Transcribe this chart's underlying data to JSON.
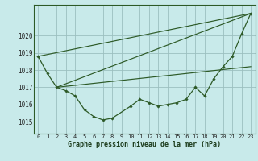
{
  "background_color": "#c8eaea",
  "plot_bg_color": "#c8eaea",
  "grid_color": "#9bbfbf",
  "line_color": "#2d5a27",
  "marker_color": "#2d5a27",
  "xlabel": "Graphe pression niveau de la mer (hPa)",
  "xlim": [
    -0.5,
    23.5
  ],
  "ylim": [
    1014.3,
    1021.8
  ],
  "yticks": [
    1015,
    1016,
    1017,
    1018,
    1019,
    1020
  ],
  "xticks": [
    0,
    1,
    2,
    3,
    4,
    5,
    6,
    7,
    8,
    9,
    10,
    11,
    12,
    13,
    14,
    15,
    16,
    17,
    18,
    19,
    20,
    21,
    22,
    23
  ],
  "series1": [
    1018.8,
    1017.8,
    1017.0,
    1016.8,
    1016.5,
    1015.7,
    1015.3,
    1015.1,
    1015.2,
    null,
    1015.9,
    1016.3,
    1016.1,
    1015.9,
    1016.0,
    1016.1,
    1016.3,
    1017.0,
    1016.5,
    1017.5,
    1018.2,
    1018.8,
    1020.1,
    1021.3
  ],
  "line2": [
    [
      0,
      1018.8
    ],
    [
      23,
      1021.3
    ]
  ],
  "line3": [
    [
      2,
      1017.0
    ],
    [
      23,
      1018.2
    ]
  ],
  "line4": [
    [
      2,
      1017.0
    ],
    [
      23,
      1021.3
    ]
  ]
}
